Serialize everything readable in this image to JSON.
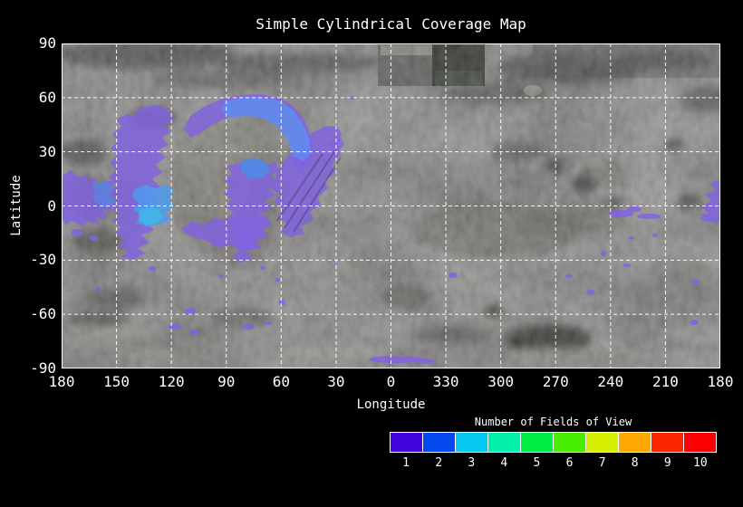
{
  "title": "Simple Cylindrical Coverage Map",
  "axes": {
    "x_label": "Longitude",
    "y_label": "Latitude",
    "x_ticks": [
      "180",
      "150",
      "120",
      "90",
      "60",
      "30",
      "0",
      "330",
      "300",
      "270",
      "240",
      "210",
      "180"
    ],
    "y_ticks": [
      "90",
      "60",
      "30",
      "0",
      "-30",
      "-60",
      "-90"
    ]
  },
  "legend": {
    "title": "Number of Fields of View",
    "entries": [
      {
        "label": "1",
        "color": "#4106DE"
      },
      {
        "label": "2",
        "color": "#0548F0"
      },
      {
        "label": "3",
        "color": "#05C9F0"
      },
      {
        "label": "4",
        "color": "#02EFAC"
      },
      {
        "label": "5",
        "color": "#02EE46"
      },
      {
        "label": "6",
        "color": "#47EE02"
      },
      {
        "label": "7",
        "color": "#D5EE02"
      },
      {
        "label": "8",
        "color": "#FFA702"
      },
      {
        "label": "9",
        "color": "#FB2502"
      },
      {
        "label": "10",
        "color": "#FA0202"
      }
    ]
  },
  "chart_data": {
    "type": "heatmap",
    "title": "Simple Cylindrical Coverage Map",
    "xlabel": "Longitude",
    "ylabel": "Latitude",
    "x_tick_values": [
      180,
      150,
      120,
      90,
      60,
      30,
      0,
      330,
      300,
      270,
      240,
      210,
      180
    ],
    "y_tick_values": [
      90,
      60,
      30,
      0,
      -30,
      -60,
      -90
    ],
    "ylim": [
      -90,
      90
    ],
    "x_axis_note": "longitude runs 180 deg at left, decreasing to 0 at center, wrapping to 180 at right; 30 deg spacing",
    "grid": {
      "spacing_deg": 30,
      "style": "white dashed gridlines over map"
    },
    "basemap": "grayscale simple-cylindrical planetary surface mosaic with bright central highland near lon 120-55, lat 40 to -20",
    "colorbar": {
      "title": "Number of Fields of View",
      "values": [
        1,
        2,
        3,
        4,
        5,
        6,
        7,
        8,
        9,
        10
      ],
      "colors": [
        "#4106DE",
        "#0548F0",
        "#05C9F0",
        "#02EFAC",
        "#02EE46",
        "#47EE02",
        "#D5EE02",
        "#FFA702",
        "#FB2502",
        "#FA0202"
      ],
      "position": "below plot, right half"
    },
    "coverage_regions": [
      {
        "fields_of_view": 1,
        "lon_deg": [
          172,
          27
        ],
        "lat_deg": [
          -25,
          58
        ],
        "note": "large violet broken ring of coverage surrounding the bright central highland"
      },
      {
        "fields_of_view": 2,
        "lon_deg": [
          92,
          44
        ],
        "lat_deg": [
          30,
          57
        ],
        "note": "blue crescent arc along the north rim of the ring"
      },
      {
        "fields_of_view": 2,
        "lon_deg": [
          142,
          119
        ],
        "lat_deg": [
          -11,
          11
        ],
        "note": "blue patch on the west limb of the ring"
      },
      {
        "fields_of_view": 2,
        "lon_deg": [
          83,
          66
        ],
        "lat_deg": [
          14,
          26
        ],
        "note": "blue patch at top of east limb"
      },
      {
        "fields_of_view": 1,
        "lon_deg": [
          196,
          180
        ],
        "lat_deg": [
          -9,
          15
        ],
        "note": "violet patch at right map edge"
      },
      {
        "fields_of_view": 1,
        "lon_deg": "scattered",
        "lat_deg": [
          -70,
          0
        ],
        "note": "many small isolated violet patches across southern mid-latitudes"
      }
    ],
    "legend_position": "bottom-right"
  }
}
